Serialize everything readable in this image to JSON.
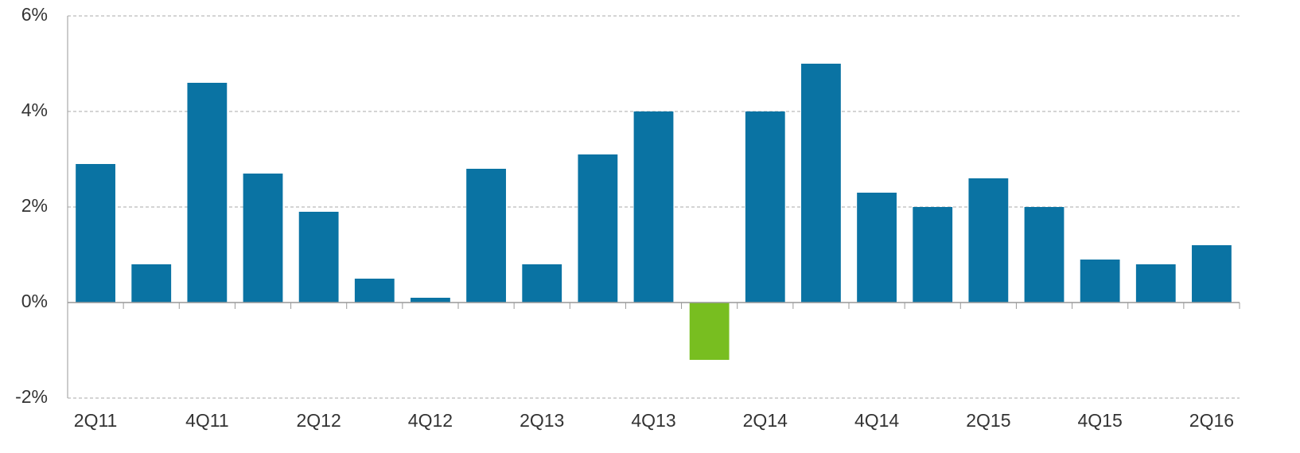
{
  "chart_data": {
    "type": "bar",
    "categories": [
      "2Q11",
      null,
      "4Q11",
      null,
      "2Q12",
      null,
      "4Q12",
      null,
      "2Q13",
      null,
      "4Q13",
      null,
      "2Q14",
      null,
      "4Q14",
      null,
      "2Q15",
      null,
      "4Q15",
      null,
      "2Q16"
    ],
    "values": [
      2.9,
      0.8,
      4.6,
      2.7,
      1.9,
      0.5,
      0.1,
      2.8,
      0.8,
      3.1,
      4.0,
      -1.2,
      4.0,
      5.0,
      2.3,
      2.0,
      2.6,
      2.0,
      0.9,
      0.8,
      1.2
    ],
    "colors": [
      "#0a73a3",
      "#0a73a3",
      "#0a73a3",
      "#0a73a3",
      "#0a73a3",
      "#0a73a3",
      "#0a73a3",
      "#0a73a3",
      "#0a73a3",
      "#0a73a3",
      "#0a73a3",
      "#78be20",
      "#0a73a3",
      "#0a73a3",
      "#0a73a3",
      "#0a73a3",
      "#0a73a3",
      "#0a73a3",
      "#0a73a3",
      "#0a73a3",
      "#0a73a3"
    ],
    "ylim": [
      -2,
      6
    ],
    "yticks": [
      {
        "value": -2,
        "label": "-2%"
      },
      {
        "value": 0,
        "label": "0%"
      },
      {
        "value": 2,
        "label": "2%"
      },
      {
        "value": 4,
        "label": "4%"
      },
      {
        "value": 6,
        "label": "6%"
      }
    ],
    "grid": true
  }
}
